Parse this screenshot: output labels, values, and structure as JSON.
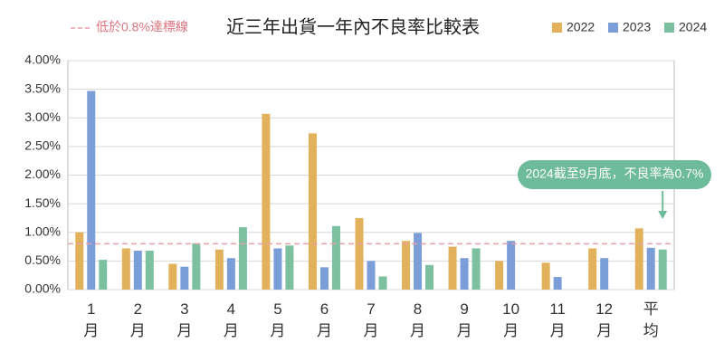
{
  "chart_data": {
    "type": "bar",
    "title": "近三年出貨一年內不良率比較表",
    "categories": [
      "1月",
      "2月",
      "3月",
      "4月",
      "5月",
      "6月",
      "7月",
      "8月",
      "9月",
      "10月",
      "11月",
      "12月",
      "平均"
    ],
    "series": [
      {
        "name": "2022",
        "color": "#e2b15c",
        "values": [
          1.0,
          0.72,
          0.45,
          0.7,
          3.07,
          2.73,
          1.25,
          0.85,
          0.75,
          0.5,
          0.47,
          0.72,
          1.07
        ]
      },
      {
        "name": "2023",
        "color": "#7b9ed9",
        "values": [
          3.47,
          0.68,
          0.4,
          0.55,
          0.72,
          0.39,
          0.5,
          0.99,
          0.55,
          0.85,
          0.22,
          0.55,
          0.73
        ]
      },
      {
        "name": "2024",
        "color": "#7dc0a0",
        "values": [
          0.52,
          0.68,
          0.81,
          1.09,
          0.77,
          1.11,
          0.23,
          0.43,
          0.72,
          null,
          null,
          null,
          0.7
        ]
      }
    ],
    "ylim": [
      0,
      4
    ],
    "yticks": [
      {
        "value": 0,
        "label": "0.00%"
      },
      {
        "value": 0.5,
        "label": "0.50%"
      },
      {
        "value": 1,
        "label": "1.00%"
      },
      {
        "value": 1.5,
        "label": "1.50%"
      },
      {
        "value": 2,
        "label": "2.00%"
      },
      {
        "value": 2.5,
        "label": "2.50%"
      },
      {
        "value": 3,
        "label": "3.00%"
      },
      {
        "value": 3.5,
        "label": "3.50%"
      },
      {
        "value": 4,
        "label": "4.00%"
      }
    ],
    "grid": true,
    "threshold": {
      "value": 0.8,
      "label": "低於0.8%達標線",
      "color": "#e8a0a8"
    },
    "annotation": "2024截至9月底，不良率為0.7%"
  }
}
